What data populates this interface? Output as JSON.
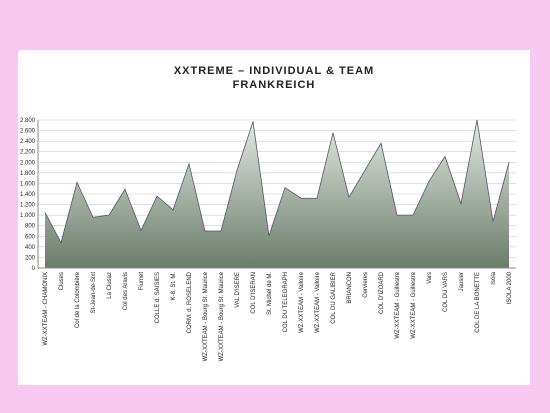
{
  "chart_data": {
    "type": "area",
    "title": "XXTREME – INDIVIDUAL & TEAM",
    "subtitle": "FRANKREICH",
    "categories": [
      "WZ-XXTEAM - CHAMONIX",
      "Cluses",
      "Col de la Colombière",
      "St-Jean-de-Sixt",
      "La Clusaz",
      "Col des Aravis",
      "Flumet",
      "COLLE d. SAISIES",
      "K-8. St. M.",
      "CORM. d. ROSELEND",
      "WZ-XXTEAM - Bourg St. Maurice",
      "WZ-XXTEAM - Bourg St. Maurice",
      "VAL D'ISERE",
      "COL D'ISERAN",
      "St. Michel de M.",
      "COL DU TELEGRAPH",
      "WZ-XXTEAM - Valloire",
      "WZ-XXTEAM - Valloire",
      "COL DU GALIBIER",
      "BRIANCON",
      "Cervieres",
      "COL D'IZOARD",
      "WZ-XXTEAM - Guillestre",
      "WZ-XXTEAM - Guillestre",
      "Vars",
      "COL DU VARS",
      "Jausier",
      "COL DE LA BONETTE",
      "Isola",
      "ISOLA 2000"
    ],
    "values": [
      1050,
      480,
      1620,
      960,
      1000,
      1490,
      710,
      1360,
      1100,
      1970,
      700,
      700,
      1850,
      2770,
      610,
      1520,
      1320,
      1320,
      2560,
      1340,
      1850,
      2360,
      1000,
      1000,
      1640,
      2110,
      1220,
      2800,
      880,
      2000
    ],
    "color": "#6b7b6b",
    "ylim": [
      0,
      2800
    ],
    "yticks": [
      0,
      200,
      400,
      600,
      800,
      {
        "value": 1000,
        "label": "1.000"
      },
      {
        "value": 1200,
        "label": "1.200"
      },
      {
        "value": 1400,
        "label": "1.400"
      },
      {
        "value": 1600,
        "label": "1.600"
      },
      {
        "value": 1800,
        "label": "1.800"
      },
      {
        "value": 2000,
        "label": "2.000"
      },
      {
        "value": 2200,
        "label": "2.200"
      },
      {
        "value": 2400,
        "label": "2.400"
      },
      {
        "value": 2600,
        "label": "2.600"
      },
      {
        "value": 2800,
        "label": "2.800"
      }
    ],
    "grid": true
  }
}
